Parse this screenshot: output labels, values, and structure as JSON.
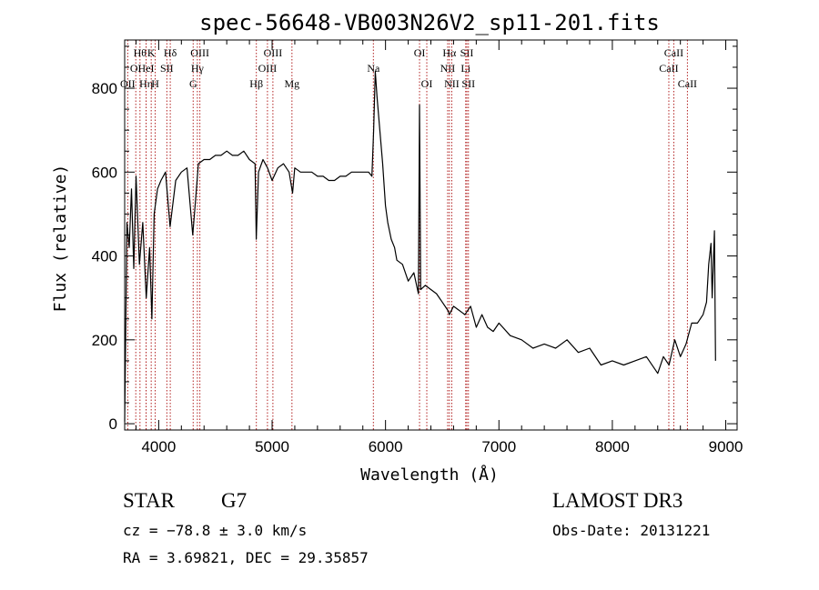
{
  "header": {
    "title": "spec-56648-VB003N26V2_sp11-201.fits"
  },
  "info": {
    "class": "STAR",
    "subclass": "G7",
    "survey": "LAMOST DR3",
    "cz": "cz = −78.8 ± 3.0 km/s",
    "obs_date": "Obs-Date: 20131221",
    "radec": "RA =   3.69821, DEC =  29.35857"
  },
  "chart_data": {
    "type": "line",
    "title": "spec-56648-VB003N26V2_sp11-201.fits",
    "xlabel": "Wavelength (Å)",
    "ylabel": "Flux (relative)",
    "xlim": [
      3700,
      9100
    ],
    "ylim": [
      -15,
      915
    ],
    "xticks": [
      4000,
      5000,
      6000,
      7000,
      8000,
      9000
    ],
    "yticks": [
      0,
      200,
      400,
      600,
      800
    ],
    "line_color": "#000000",
    "marker_color": "#b22222",
    "series": [
      {
        "x": [
          3700,
          3720,
          3740,
          3760,
          3780,
          3800,
          3830,
          3860,
          3890,
          3920,
          3940,
          3960,
          3990,
          4020,
          4060,
          4100,
          4150,
          4200,
          4250,
          4300,
          4330,
          4350,
          4400,
          4450,
          4500,
          4550,
          4600,
          4650,
          4700,
          4750,
          4800,
          4850,
          4860,
          4880,
          4920,
          4960,
          5000,
          5050,
          5100,
          5150,
          5180,
          5200,
          5250,
          5300,
          5350,
          5400,
          5450,
          5500,
          5550,
          5600,
          5650,
          5700,
          5750,
          5800,
          5850,
          5880,
          5895,
          5910,
          5925,
          5950,
          5975,
          6000,
          6020,
          6050,
          6080,
          6100,
          6150,
          6200,
          6250,
          6290,
          6300,
          6310,
          6350,
          6400,
          6450,
          6500,
          6550,
          6563,
          6600,
          6650,
          6700,
          6750,
          6800,
          6850,
          6900,
          6950,
          7000,
          7100,
          7200,
          7300,
          7400,
          7500,
          7600,
          7700,
          7800,
          7900,
          8000,
          8100,
          8200,
          8300,
          8400,
          8450,
          8500,
          8550,
          8600,
          8650,
          8700,
          8750,
          8800,
          8830,
          8850,
          8870,
          8880,
          8900,
          8910
        ],
        "y": [
          5,
          480,
          420,
          560,
          370,
          590,
          380,
          480,
          300,
          420,
          250,
          500,
          560,
          580,
          600,
          470,
          580,
          600,
          610,
          450,
          550,
          620,
          630,
          630,
          640,
          640,
          650,
          640,
          640,
          650,
          630,
          620,
          440,
          600,
          630,
          610,
          580,
          610,
          620,
          600,
          550,
          610,
          600,
          600,
          600,
          590,
          590,
          580,
          580,
          590,
          590,
          600,
          600,
          600,
          600,
          590,
          700,
          840,
          780,
          700,
          620,
          520,
          480,
          440,
          420,
          390,
          380,
          340,
          360,
          310,
          760,
          320,
          330,
          320,
          310,
          290,
          270,
          260,
          280,
          270,
          260,
          280,
          230,
          260,
          230,
          220,
          240,
          210,
          200,
          180,
          190,
          180,
          200,
          170,
          180,
          140,
          150,
          140,
          150,
          160,
          120,
          160,
          140,
          200,
          160,
          190,
          240,
          240,
          260,
          290,
          380,
          430,
          300,
          460,
          150
        ]
      }
    ],
    "markers": [
      {
        "x": 3727,
        "label": "OII",
        "row": 3
      },
      {
        "x": 3798,
        "label": "OI",
        "row": 2
      },
      {
        "x": 3835,
        "label": "Hθ",
        "row": 1
      },
      {
        "x": 3889,
        "label": "Hη",
        "row": 3
      },
      {
        "x": 3889,
        "label": "HeI",
        "row": 2
      },
      {
        "x": 3934,
        "label": "K",
        "row": 1
      },
      {
        "x": 3969,
        "label": "H",
        "row": 3
      },
      {
        "x": 4072,
        "label": "SII",
        "row": 2
      },
      {
        "x": 4102,
        "label": "Hδ",
        "row": 1
      },
      {
        "x": 4304,
        "label": "G",
        "row": 3
      },
      {
        "x": 4341,
        "label": "Hγ",
        "row": 2
      },
      {
        "x": 4363,
        "label": "OIII",
        "row": 1
      },
      {
        "x": 4861,
        "label": "Hβ",
        "row": 3
      },
      {
        "x": 4959,
        "label": "OIII",
        "row": 2
      },
      {
        "x": 5007,
        "label": "OIII",
        "row": 1
      },
      {
        "x": 5175,
        "label": "Mg",
        "row": 3
      },
      {
        "x": 5893,
        "label": "Na",
        "row": 2
      },
      {
        "x": 6300,
        "label": "OI",
        "row": 1
      },
      {
        "x": 6364,
        "label": "OI",
        "row": 3
      },
      {
        "x": 6548,
        "label": "NII",
        "row": 2
      },
      {
        "x": 6563,
        "label": "Hα",
        "row": 1
      },
      {
        "x": 6584,
        "label": "NII",
        "row": 3
      },
      {
        "x": 6707,
        "label": "Li",
        "row": 2
      },
      {
        "x": 6717,
        "label": "SII",
        "row": 1
      },
      {
        "x": 6731,
        "label": "SII",
        "row": 3
      },
      {
        "x": 8498,
        "label": "CaII",
        "row": 2
      },
      {
        "x": 8542,
        "label": "CaII",
        "row": 1
      },
      {
        "x": 8662,
        "label": "CaII",
        "row": 3
      }
    ]
  }
}
